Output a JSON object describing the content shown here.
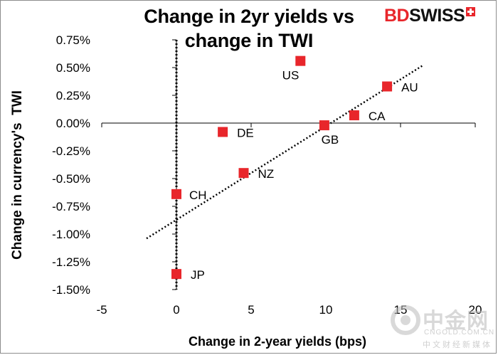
{
  "brand": {
    "bd": "BD",
    "swiss": "SWISS"
  },
  "watermark": {
    "text": "中金网",
    "url": "CNGOLD.COM.CN",
    "sub": "中文财经新媒体"
  },
  "chart_data": {
    "type": "scatter",
    "title": "Change in 2yr yields vs change in TWI",
    "title_lines": [
      "Change in 2yr yields vs",
      "change in TWI"
    ],
    "xlabel": "Change in 2-year yields (bps)",
    "ylabel": "Change in currency's  TWI",
    "xlim": [
      -5,
      20
    ],
    "ylim": [
      -1.5,
      0.75
    ],
    "xticks": [
      -5,
      0,
      5,
      10,
      15,
      20
    ],
    "xtick_labels": [
      "-5",
      "0",
      "5",
      "10",
      "15",
      "20"
    ],
    "yticks": [
      0.75,
      0.5,
      0.25,
      0.0,
      -0.25,
      -0.5,
      -0.75,
      -1.0,
      -1.25,
      -1.5
    ],
    "ytick_labels": [
      "0.75%",
      "0.50%",
      "0.25%",
      "0.00%",
      "-0.25%",
      "-0.50%",
      "-0.75%",
      "-1.00%",
      "-1.25%",
      "-1.50%"
    ],
    "grid": false,
    "marker_color": "#e8262b",
    "points": [
      {
        "label": "US",
        "x": 8.3,
        "y": 0.56
      },
      {
        "label": "AU",
        "x": 14.1,
        "y": 0.33
      },
      {
        "label": "CA",
        "x": 11.9,
        "y": 0.07
      },
      {
        "label": "GB",
        "x": 9.9,
        "y": -0.02
      },
      {
        "label": "DE",
        "x": 3.1,
        "y": -0.08
      },
      {
        "label": "NZ",
        "x": 4.5,
        "y": -0.45
      },
      {
        "label": "CH",
        "x": 0.0,
        "y": -0.64
      },
      {
        "label": "JP",
        "x": 0.0,
        "y": -1.36
      }
    ],
    "trendline": {
      "style": "dotted",
      "x": [
        -2,
        16.5
      ],
      "y": [
        -1.04,
        0.52
      ]
    }
  }
}
